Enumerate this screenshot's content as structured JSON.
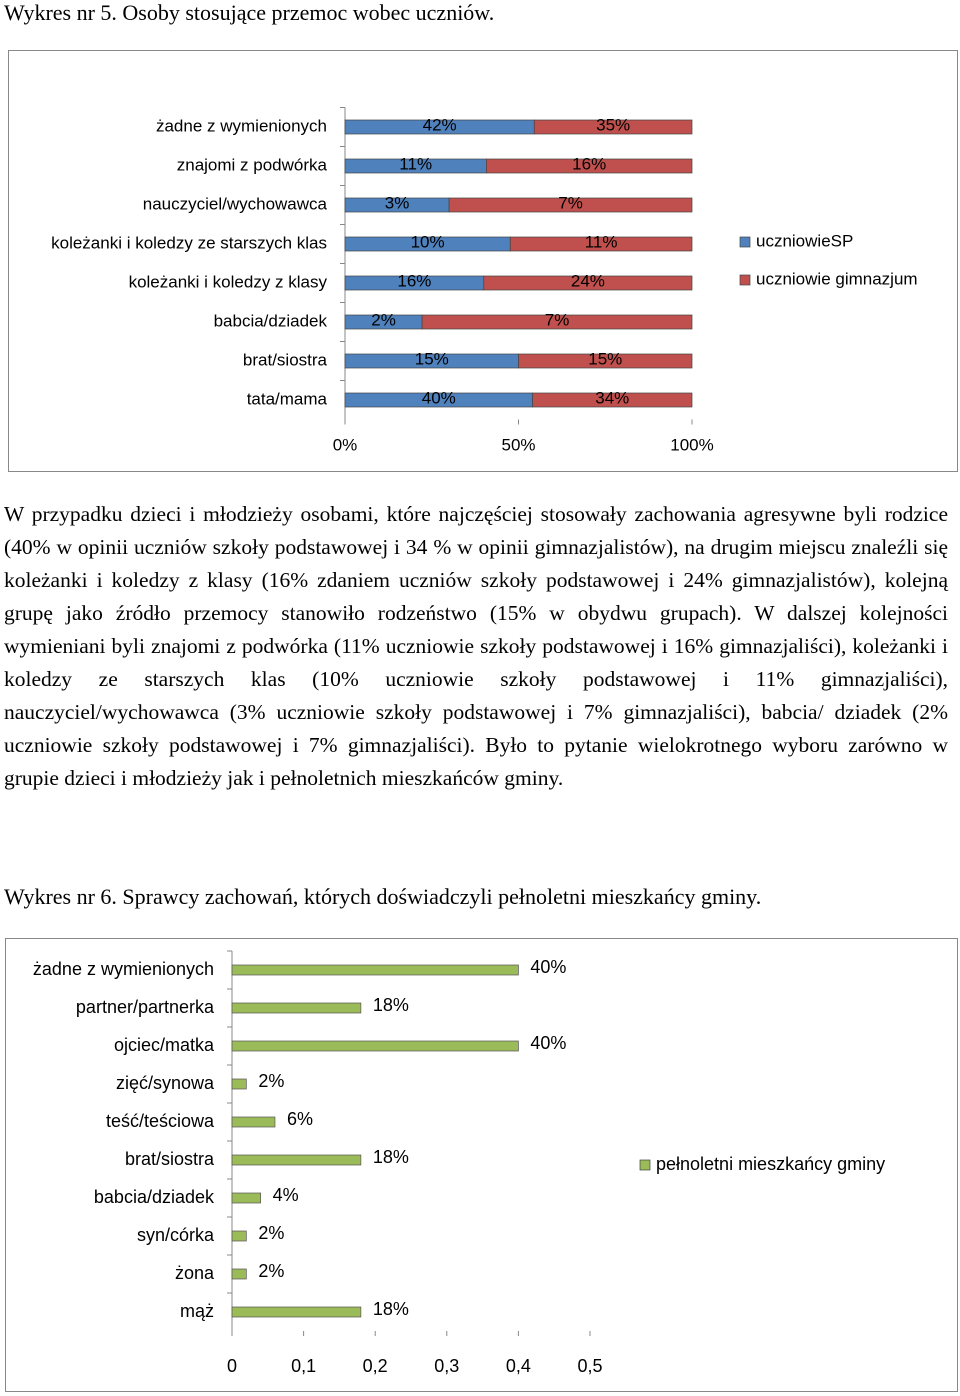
{
  "caption_1": "Wykres nr 5. Osoby stosujące przemoc wobec uczniów.",
  "chart_data": [
    {
      "type": "stacked_percent_bar",
      "orientation": "horizontal",
      "categories": [
        "żadne z wymienionych",
        "znajomi z podwórka",
        "nauczyciel/wychowawca",
        "koleżanki i koledzy ze starszych klas",
        "koleżanki i koledzy z klasy",
        "babcia/dziadek",
        "brat/siostra",
        "tata/mama"
      ],
      "series": [
        {
          "name": "uczniowieSP",
          "color": "#4f81bd",
          "values": [
            42,
            11,
            3,
            10,
            16,
            2,
            15,
            40
          ],
          "value_labels": [
            "42%",
            "11%",
            "3%",
            "10%",
            "16%",
            "2%",
            "15%",
            "40%"
          ]
        },
        {
          "name": "uczniowie gimnazjum",
          "color": "#c0504d",
          "values": [
            35,
            16,
            7,
            11,
            24,
            7,
            15,
            34
          ],
          "value_labels": [
            "35%",
            "16%",
            "7%",
            "11%",
            "24%",
            "7%",
            "15%",
            "34%"
          ]
        }
      ],
      "xlim": [
        0,
        100
      ],
      "xticks": [
        {
          "value": 0,
          "label": "0%"
        },
        {
          "value": 50,
          "label": "50%"
        },
        {
          "value": 100,
          "label": "100%"
        }
      ],
      "grid": false,
      "legend": "right"
    },
    {
      "type": "bar",
      "orientation": "horizontal",
      "categories": [
        "żadne z wymienionych",
        "partner/partnerka",
        "ojciec/matka",
        "zięć/synowa",
        "teść/teściowa",
        "brat/siostra",
        "babcia/dziadek",
        "syn/córka",
        "żona",
        "mąż"
      ],
      "series": [
        {
          "name": "pełnoletni mieszkańcy gminy",
          "color": "#9bbb59",
          "values": [
            0.4,
            0.18,
            0.4,
            0.02,
            0.06,
            0.18,
            0.04,
            0.02,
            0.02,
            0.18
          ],
          "value_labels": [
            "40%",
            "18%",
            "40%",
            "2%",
            "6%",
            "18%",
            "4%",
            "2%",
            "2%",
            "18%"
          ]
        }
      ],
      "xlim": [
        0,
        0.5
      ],
      "xticks": [
        0,
        {
          "value": 0.1,
          "label": "0,1"
        },
        {
          "value": 0.2,
          "label": "0,2"
        },
        {
          "value": 0.3,
          "label": "0,3"
        },
        {
          "value": 0.4,
          "label": "0,4"
        },
        {
          "value": 0.5,
          "label": "0,5"
        }
      ],
      "grid": false,
      "legend": "right"
    }
  ],
  "paragraph": "W przypadku dzieci i młodzieży osobami, które najczęściej stosowały zachowania agresywne byli rodzice (40% w opinii uczniów szkoły podstawowej i 34 % w opinii gimnazjalistów), na drugim miejscu znaleźli się koleżanki i koledzy z klasy (16% zdaniem uczniów szkoły podstawowej i 24% gimnazjalistów), kolejną grupę jako źródło przemocy stanowiło rodzeństwo (15% w obydwu grupach). W dalszej kolejności wymieniani byli znajomi z podwórka (11% uczniowie szkoły podstawowej i 16% gimnazjaliści), koleżanki i koledzy ze starszych klas (10% uczniowie szkoły podstawowej i 11% gimnazjaliści), nauczyciel/wychowawca (3% uczniowie szkoły podstawowej i 7% gimnazjaliści), babcia/ dziadek (2% uczniowie szkoły podstawowej i 7% gimnazjaliści). Było to pytanie wielokrotnego wyboru zarówno w grupie dzieci i młodzieży jak i pełnoletnich mieszkańców gminy.",
  "caption_2": "Wykres nr 6. Sprawcy zachowań, których doświadczyli pełnoletni mieszkańcy gminy."
}
